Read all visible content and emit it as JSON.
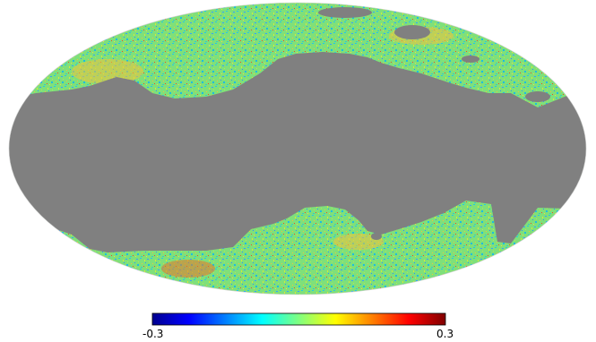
{
  "map": {
    "projection": "mollweide",
    "mask_color": "#808080",
    "background": "#ffffff",
    "field_base_color": "#7fe07a"
  },
  "colorbar": {
    "min_label": "-0.3",
    "max_label": "0.3",
    "colormap": [
      "#00008f",
      "#0000ff",
      "#0080ff",
      "#00ffff",
      "#80ff80",
      "#ffff00",
      "#ff8000",
      "#ff0000",
      "#800000"
    ]
  }
}
